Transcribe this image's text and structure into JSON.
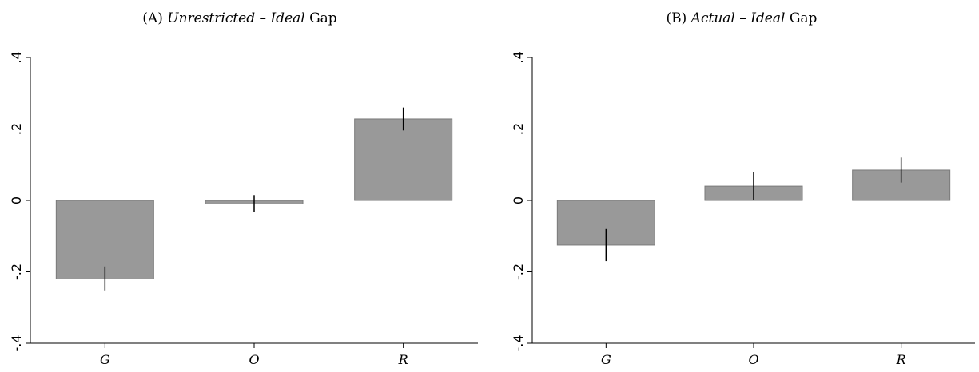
{
  "chart_data": [
    {
      "type": "bar",
      "panel_label": "(A)",
      "title_parts": [
        "Unrestricted",
        " – ",
        "Ideal",
        " Gap"
      ],
      "categories": [
        "G",
        "O",
        "R"
      ],
      "values": [
        -0.22,
        -0.01,
        0.228
      ],
      "error_bars": [
        [
          -0.252,
          -0.185
        ],
        [
          -0.033,
          0.015
        ],
        [
          0.196,
          0.26
        ]
      ],
      "ylim": [
        -0.4,
        0.4
      ],
      "yticks": [
        -0.4,
        -0.2,
        0,
        0.2,
        0.4
      ],
      "ytick_labels": [
        "-.4",
        "-.2",
        "0",
        ".2",
        ".4"
      ],
      "bar_color": "#999999",
      "grid": false
    },
    {
      "type": "bar",
      "panel_label": "(B)",
      "title_parts": [
        "Actual",
        " – ",
        "Ideal",
        " Gap"
      ],
      "categories": [
        "G",
        "O",
        "R"
      ],
      "values": [
        -0.125,
        0.04,
        0.085
      ],
      "error_bars": [
        [
          -0.17,
          -0.08
        ],
        [
          0.0,
          0.08
        ],
        [
          0.05,
          0.12
        ]
      ],
      "ylim": [
        -0.4,
        0.4
      ],
      "yticks": [
        -0.4,
        -0.2,
        0,
        0.2,
        0.4
      ],
      "ytick_labels": [
        "-.4",
        "-.2",
        "0",
        ".2",
        ".4"
      ],
      "bar_color": "#999999",
      "grid": false
    }
  ]
}
